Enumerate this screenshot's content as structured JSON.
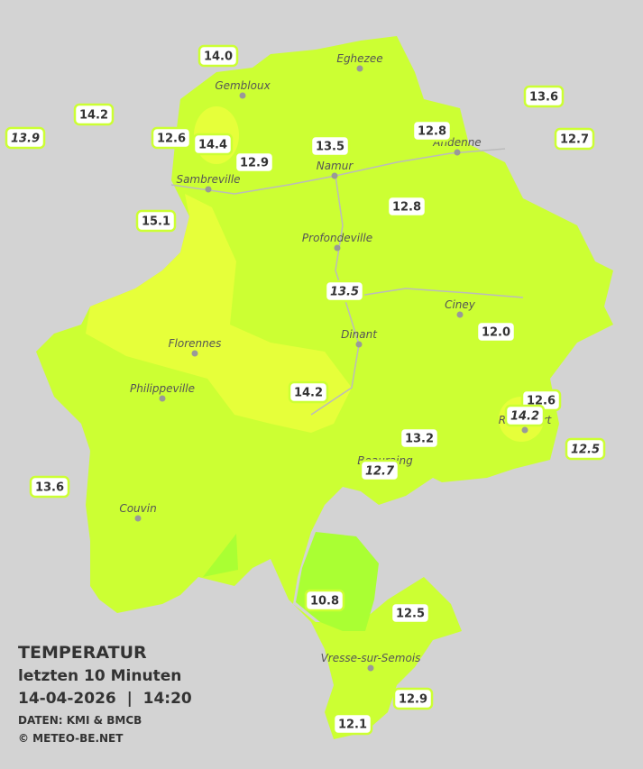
{
  "towns": [
    "Eghezee",
    "Gembloux",
    "Andenne",
    "Namur",
    "Sambreville",
    "Profondeville",
    "Ciney",
    "Dinant",
    "Florennes",
    "Philippeville",
    "Rochefort",
    "Beauraing",
    "Couvin",
    "Vresse-sur-Semois"
  ],
  "stations": [
    {
      "label": "14.0",
      "italic": false
    },
    {
      "label": "14.2",
      "italic": false
    },
    {
      "label": "13.9",
      "italic": true
    },
    {
      "label": "12.6",
      "italic": false
    },
    {
      "label": "14.4",
      "italic": false
    },
    {
      "label": "12.9",
      "italic": false
    },
    {
      "label": "13.5",
      "italic": false
    },
    {
      "label": "12.8",
      "italic": false
    },
    {
      "label": "13.6",
      "italic": false
    },
    {
      "label": "12.7",
      "italic": false
    },
    {
      "label": "15.1",
      "italic": false
    },
    {
      "label": "12.8",
      "italic": false
    },
    {
      "label": "13.5",
      "italic": true
    },
    {
      "label": "12.0",
      "italic": false
    },
    {
      "label": "14.2",
      "italic": false
    },
    {
      "label": "12.6",
      "italic": false
    },
    {
      "label": "14.2",
      "italic": true
    },
    {
      "label": "12.5",
      "italic": true
    },
    {
      "label": "13.2",
      "italic": false
    },
    {
      "label": "12.7",
      "italic": true
    },
    {
      "label": "13.6",
      "italic": false
    },
    {
      "label": "10.8",
      "italic": false
    },
    {
      "label": "12.5",
      "italic": false
    },
    {
      "label": "12.9",
      "italic": false
    },
    {
      "label": "12.1",
      "italic": false
    }
  ],
  "footer": {
    "title": "TEMPERATUR",
    "subtitle": "letzten 10 Minuten",
    "datetime": "14-04-2026  |  14:20",
    "source": "DATEN: KMI & BMCB",
    "copyright": "© METEO-BE.NET"
  }
}
